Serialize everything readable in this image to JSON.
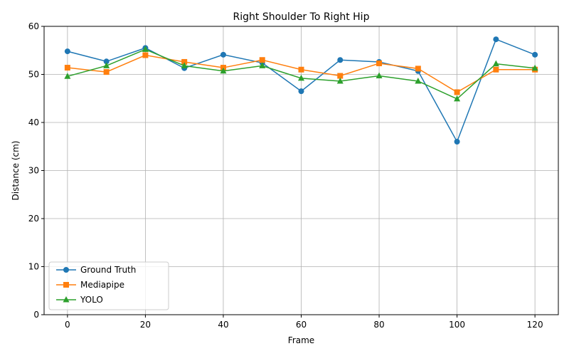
{
  "chart_data": {
    "type": "line",
    "title": "Right Shoulder To Right Hip",
    "xlabel": "Frame",
    "ylabel": "Distance (cm)",
    "xlim": [
      -6,
      126
    ],
    "ylim": [
      0,
      60
    ],
    "x": [
      0,
      10,
      20,
      30,
      40,
      50,
      60,
      70,
      80,
      90,
      100,
      110,
      120
    ],
    "xticks": [
      0,
      20,
      40,
      60,
      80,
      100,
      120
    ],
    "yticks": [
      0,
      10,
      20,
      30,
      40,
      50,
      60
    ],
    "grid": true,
    "legend_position": "lower-left",
    "series": [
      {
        "name": "Ground Truth",
        "color": "#1f77b4",
        "marker": "circle",
        "values": [
          54.8,
          52.7,
          55.5,
          51.3,
          54.1,
          52.4,
          46.5,
          53.0,
          52.6,
          50.7,
          36.0,
          57.3,
          54.1
        ]
      },
      {
        "name": "Mediapipe",
        "color": "#ff7f0e",
        "marker": "square",
        "values": [
          51.4,
          50.5,
          54.0,
          52.6,
          51.4,
          53.0,
          51.0,
          49.7,
          52.3,
          51.2,
          46.3,
          51.0,
          51.0
        ]
      },
      {
        "name": "YOLO",
        "color": "#2ca02c",
        "marker": "triangle",
        "values": [
          49.6,
          51.8,
          55.2,
          51.8,
          50.7,
          51.8,
          49.2,
          48.6,
          49.7,
          48.6,
          44.9,
          52.2,
          51.3
        ]
      }
    ]
  }
}
